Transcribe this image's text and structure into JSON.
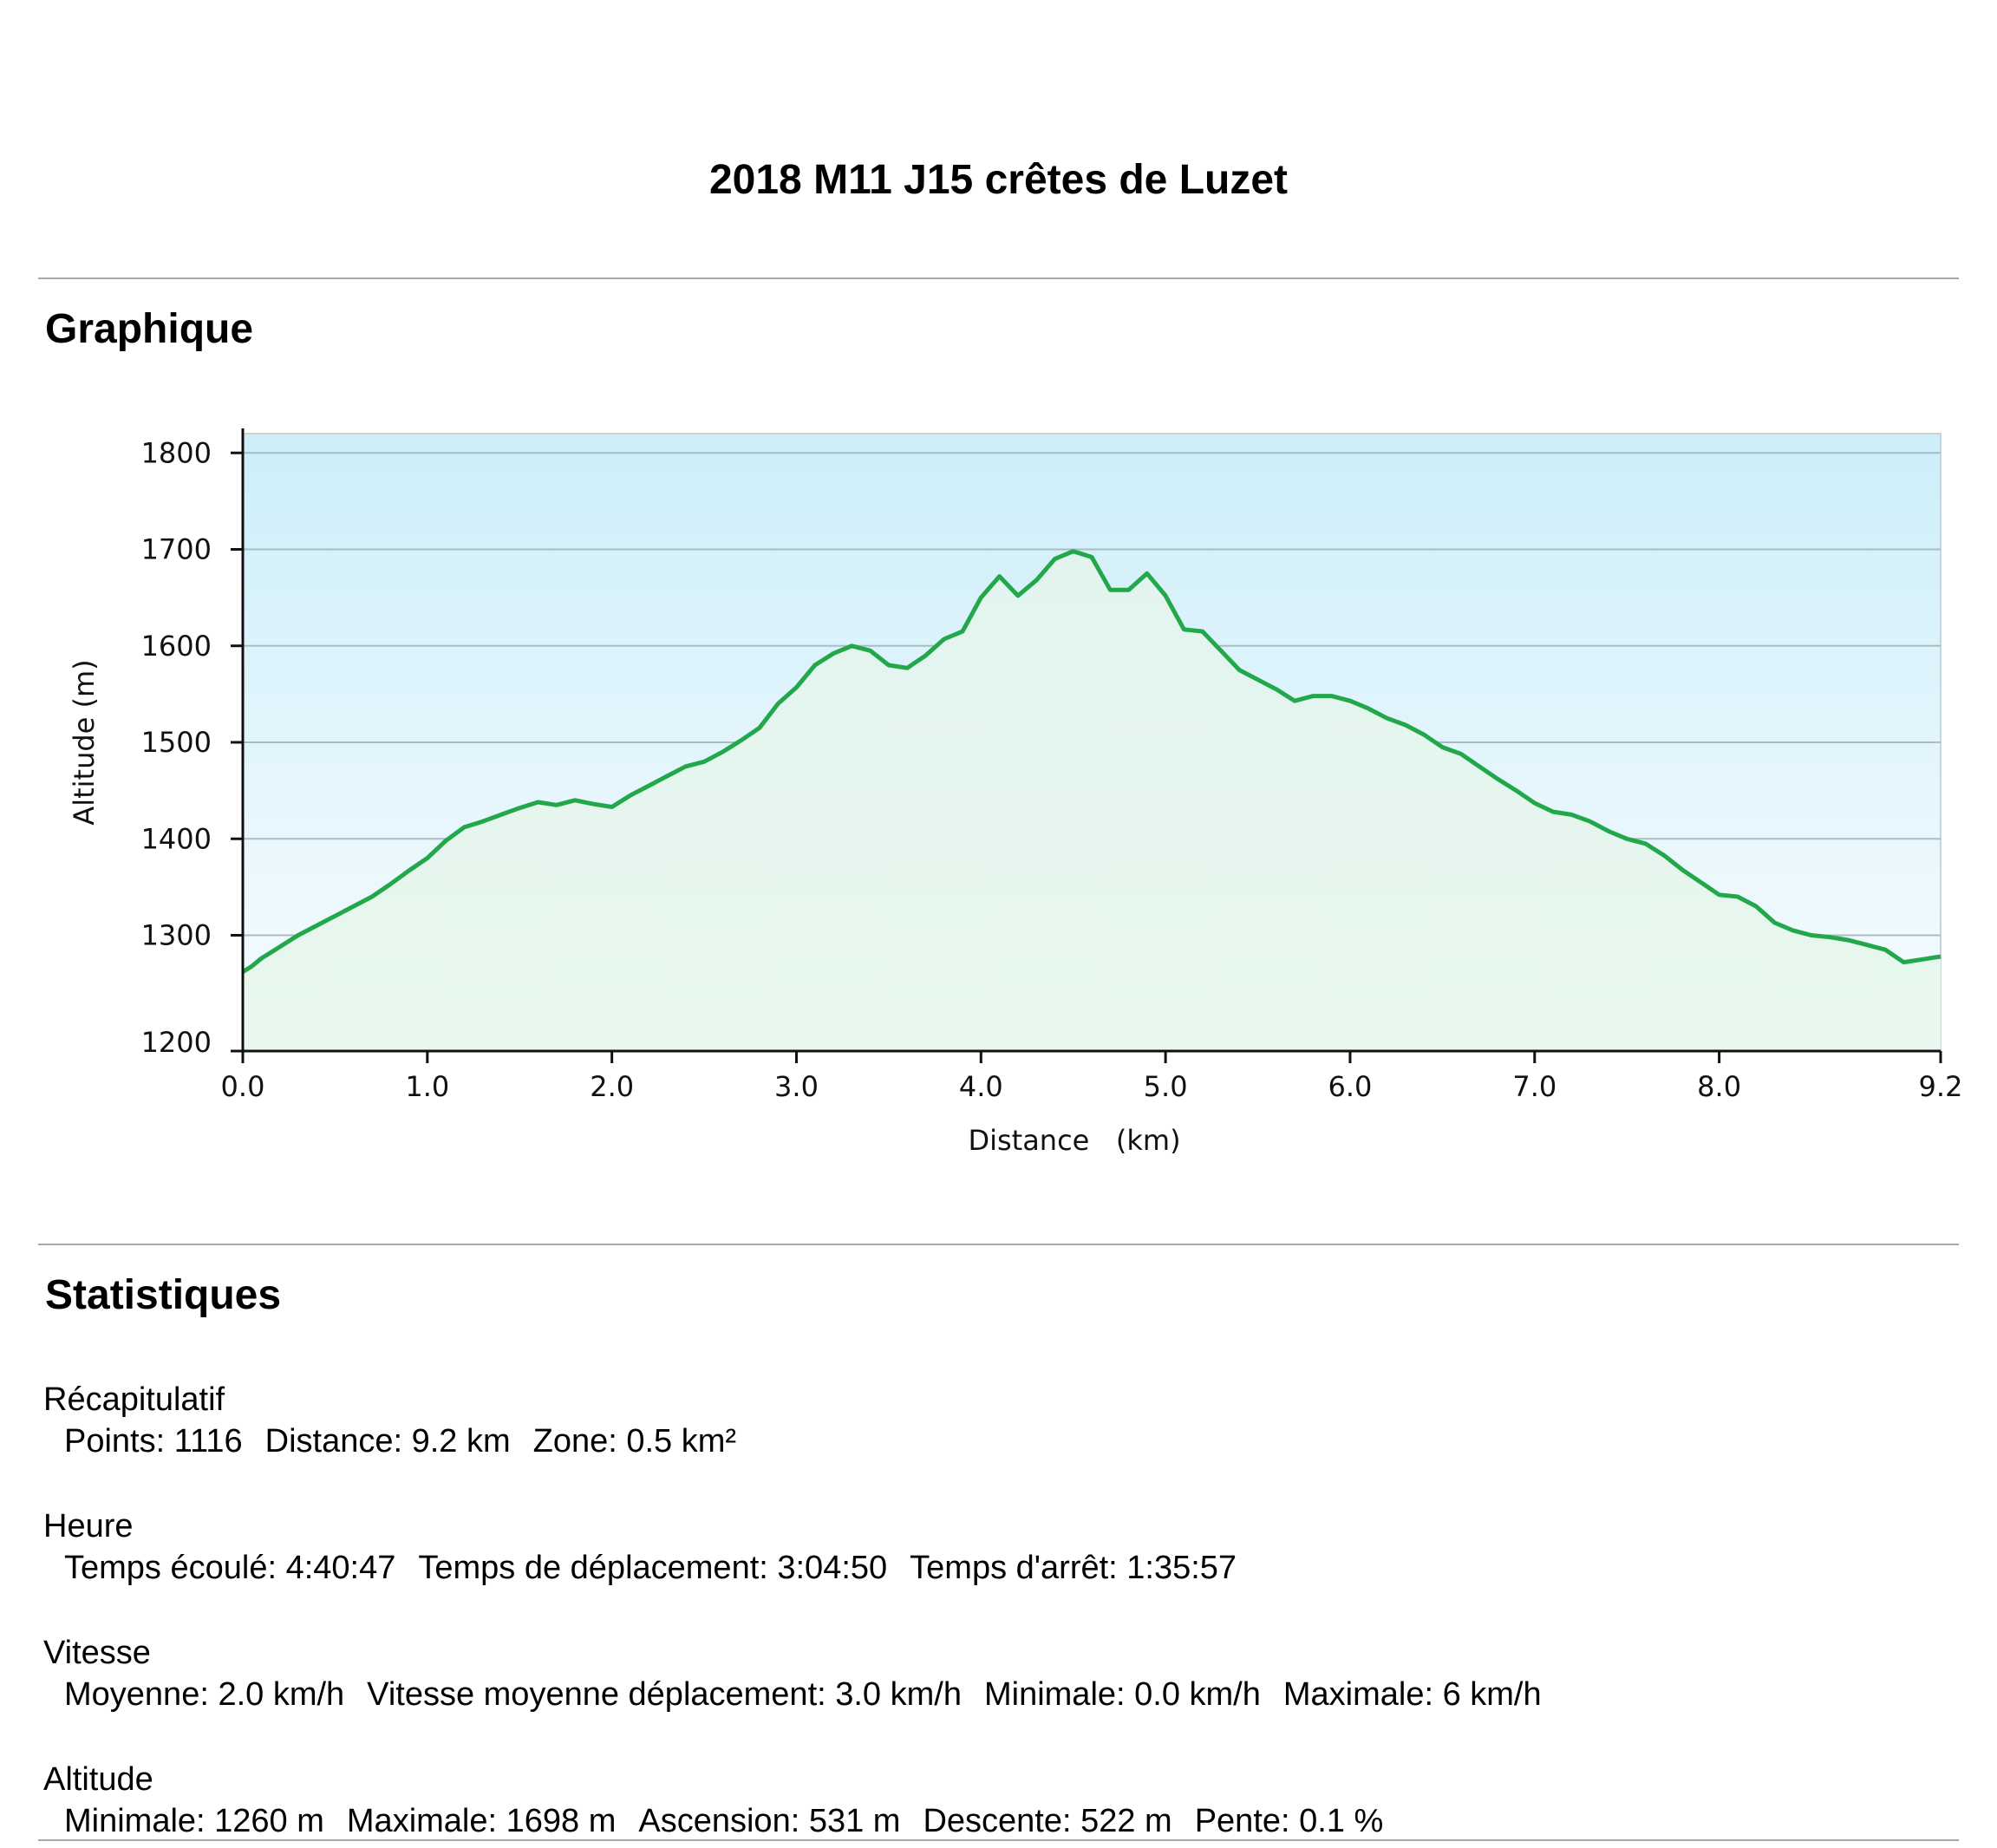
{
  "title": "2018 M11 J15 crêtes de Luzet",
  "sections": {
    "graph": "Graphique",
    "stats": "Statistiques"
  },
  "colors": {
    "line": "#22a84b",
    "fill_top": "#e3f4ef",
    "fill_bottom": "#e8f8ee",
    "sky_top": "#cdeef9",
    "sky_bottom": "#f7fcff",
    "grid": "#a9bcc4"
  },
  "chart_data": {
    "type": "area",
    "xlabel": "Distance   (km)",
    "ylabel": "Altitude (m)",
    "xlim": [
      0.0,
      9.2
    ],
    "ylim": [
      1180,
      1820
    ],
    "x_ticks": [
      "0.0",
      "1.0",
      "2.0",
      "3.0",
      "4.0",
      "5.0",
      "6.0",
      "7.0",
      "8.0",
      "9.2"
    ],
    "x_tick_values": [
      0,
      1,
      2,
      3,
      4,
      5,
      6,
      7,
      8,
      9.2
    ],
    "y_ticks": [
      "1200",
      "1300",
      "1400",
      "1500",
      "1600",
      "1700",
      "1800"
    ],
    "y_tick_values": [
      1200,
      1300,
      1400,
      1500,
      1600,
      1700,
      1800
    ],
    "grid": true,
    "series": [
      {
        "x": [
          0.0,
          0.05,
          0.1,
          0.2,
          0.3,
          0.4,
          0.5,
          0.6,
          0.7,
          0.8,
          0.9,
          1.0,
          1.1,
          1.2,
          1.3,
          1.4,
          1.5,
          1.6,
          1.7,
          1.8,
          1.9,
          2.0,
          2.1,
          2.2,
          2.3,
          2.4,
          2.5,
          2.6,
          2.7,
          2.8,
          2.9,
          3.0,
          3.1,
          3.2,
          3.3,
          3.4,
          3.5,
          3.6,
          3.7,
          3.8,
          3.9,
          4.0,
          4.1,
          4.2,
          4.3,
          4.4,
          4.5,
          4.6,
          4.7,
          4.8,
          4.9,
          5.0,
          5.1,
          5.2,
          5.3,
          5.4,
          5.5,
          5.6,
          5.7,
          5.8,
          5.9,
          6.0,
          6.1,
          6.2,
          6.3,
          6.4,
          6.5,
          6.6,
          6.7,
          6.8,
          6.9,
          7.0,
          7.1,
          7.2,
          7.3,
          7.4,
          7.5,
          7.6,
          7.7,
          7.8,
          7.9,
          8.0,
          8.1,
          8.2,
          8.3,
          8.4,
          8.5,
          8.6,
          8.7,
          8.8,
          8.9,
          9.0,
          9.1,
          9.2
        ],
        "y": [
          1262,
          1268,
          1276,
          1288,
          1300,
          1310,
          1320,
          1330,
          1340,
          1353,
          1367,
          1380,
          1398,
          1412,
          1418,
          1425,
          1432,
          1438,
          1435,
          1440,
          1436,
          1433,
          1445,
          1455,
          1465,
          1475,
          1480,
          1490,
          1502,
          1515,
          1540,
          1557,
          1580,
          1592,
          1600,
          1595,
          1580,
          1577,
          1590,
          1607,
          1615,
          1650,
          1672,
          1652,
          1668,
          1690,
          1698,
          1692,
          1658,
          1658,
          1675,
          1652,
          1617,
          1615,
          1595,
          1575,
          1565,
          1555,
          1543,
          1548,
          1548,
          1543,
          1535,
          1525,
          1518,
          1508,
          1495,
          1488,
          1475,
          1462,
          1450,
          1437,
          1428,
          1425,
          1418,
          1408,
          1400,
          1395,
          1383,
          1368,
          1355,
          1342,
          1340,
          1330,
          1313,
          1305,
          1300,
          1298,
          1295,
          1290,
          1285,
          1272,
          1275,
          1278
        ]
      }
    ]
  },
  "stats": [
    {
      "heading": "Récapitulatif",
      "items": [
        "Points: 1116",
        "Distance: 9.2 km",
        "Zone: 0.5 km²"
      ]
    },
    {
      "heading": "Heure",
      "items": [
        "Temps écoulé: 4:40:47",
        "Temps de déplacement: 3:04:50",
        "Temps d'arrêt: 1:35:57"
      ]
    },
    {
      "heading": "Vitesse",
      "items": [
        "Moyenne: 2.0 km/h",
        "Vitesse moyenne déplacement: 3.0 km/h",
        "Minimale: 0.0 km/h",
        "Maximale: 6 km/h"
      ]
    },
    {
      "heading": "Altitude",
      "items": [
        "Minimale: 1260 m",
        "Maximale: 1698 m",
        "Ascension: 531 m",
        "Descente: 522 m",
        "Pente: 0.1 %"
      ]
    }
  ]
}
